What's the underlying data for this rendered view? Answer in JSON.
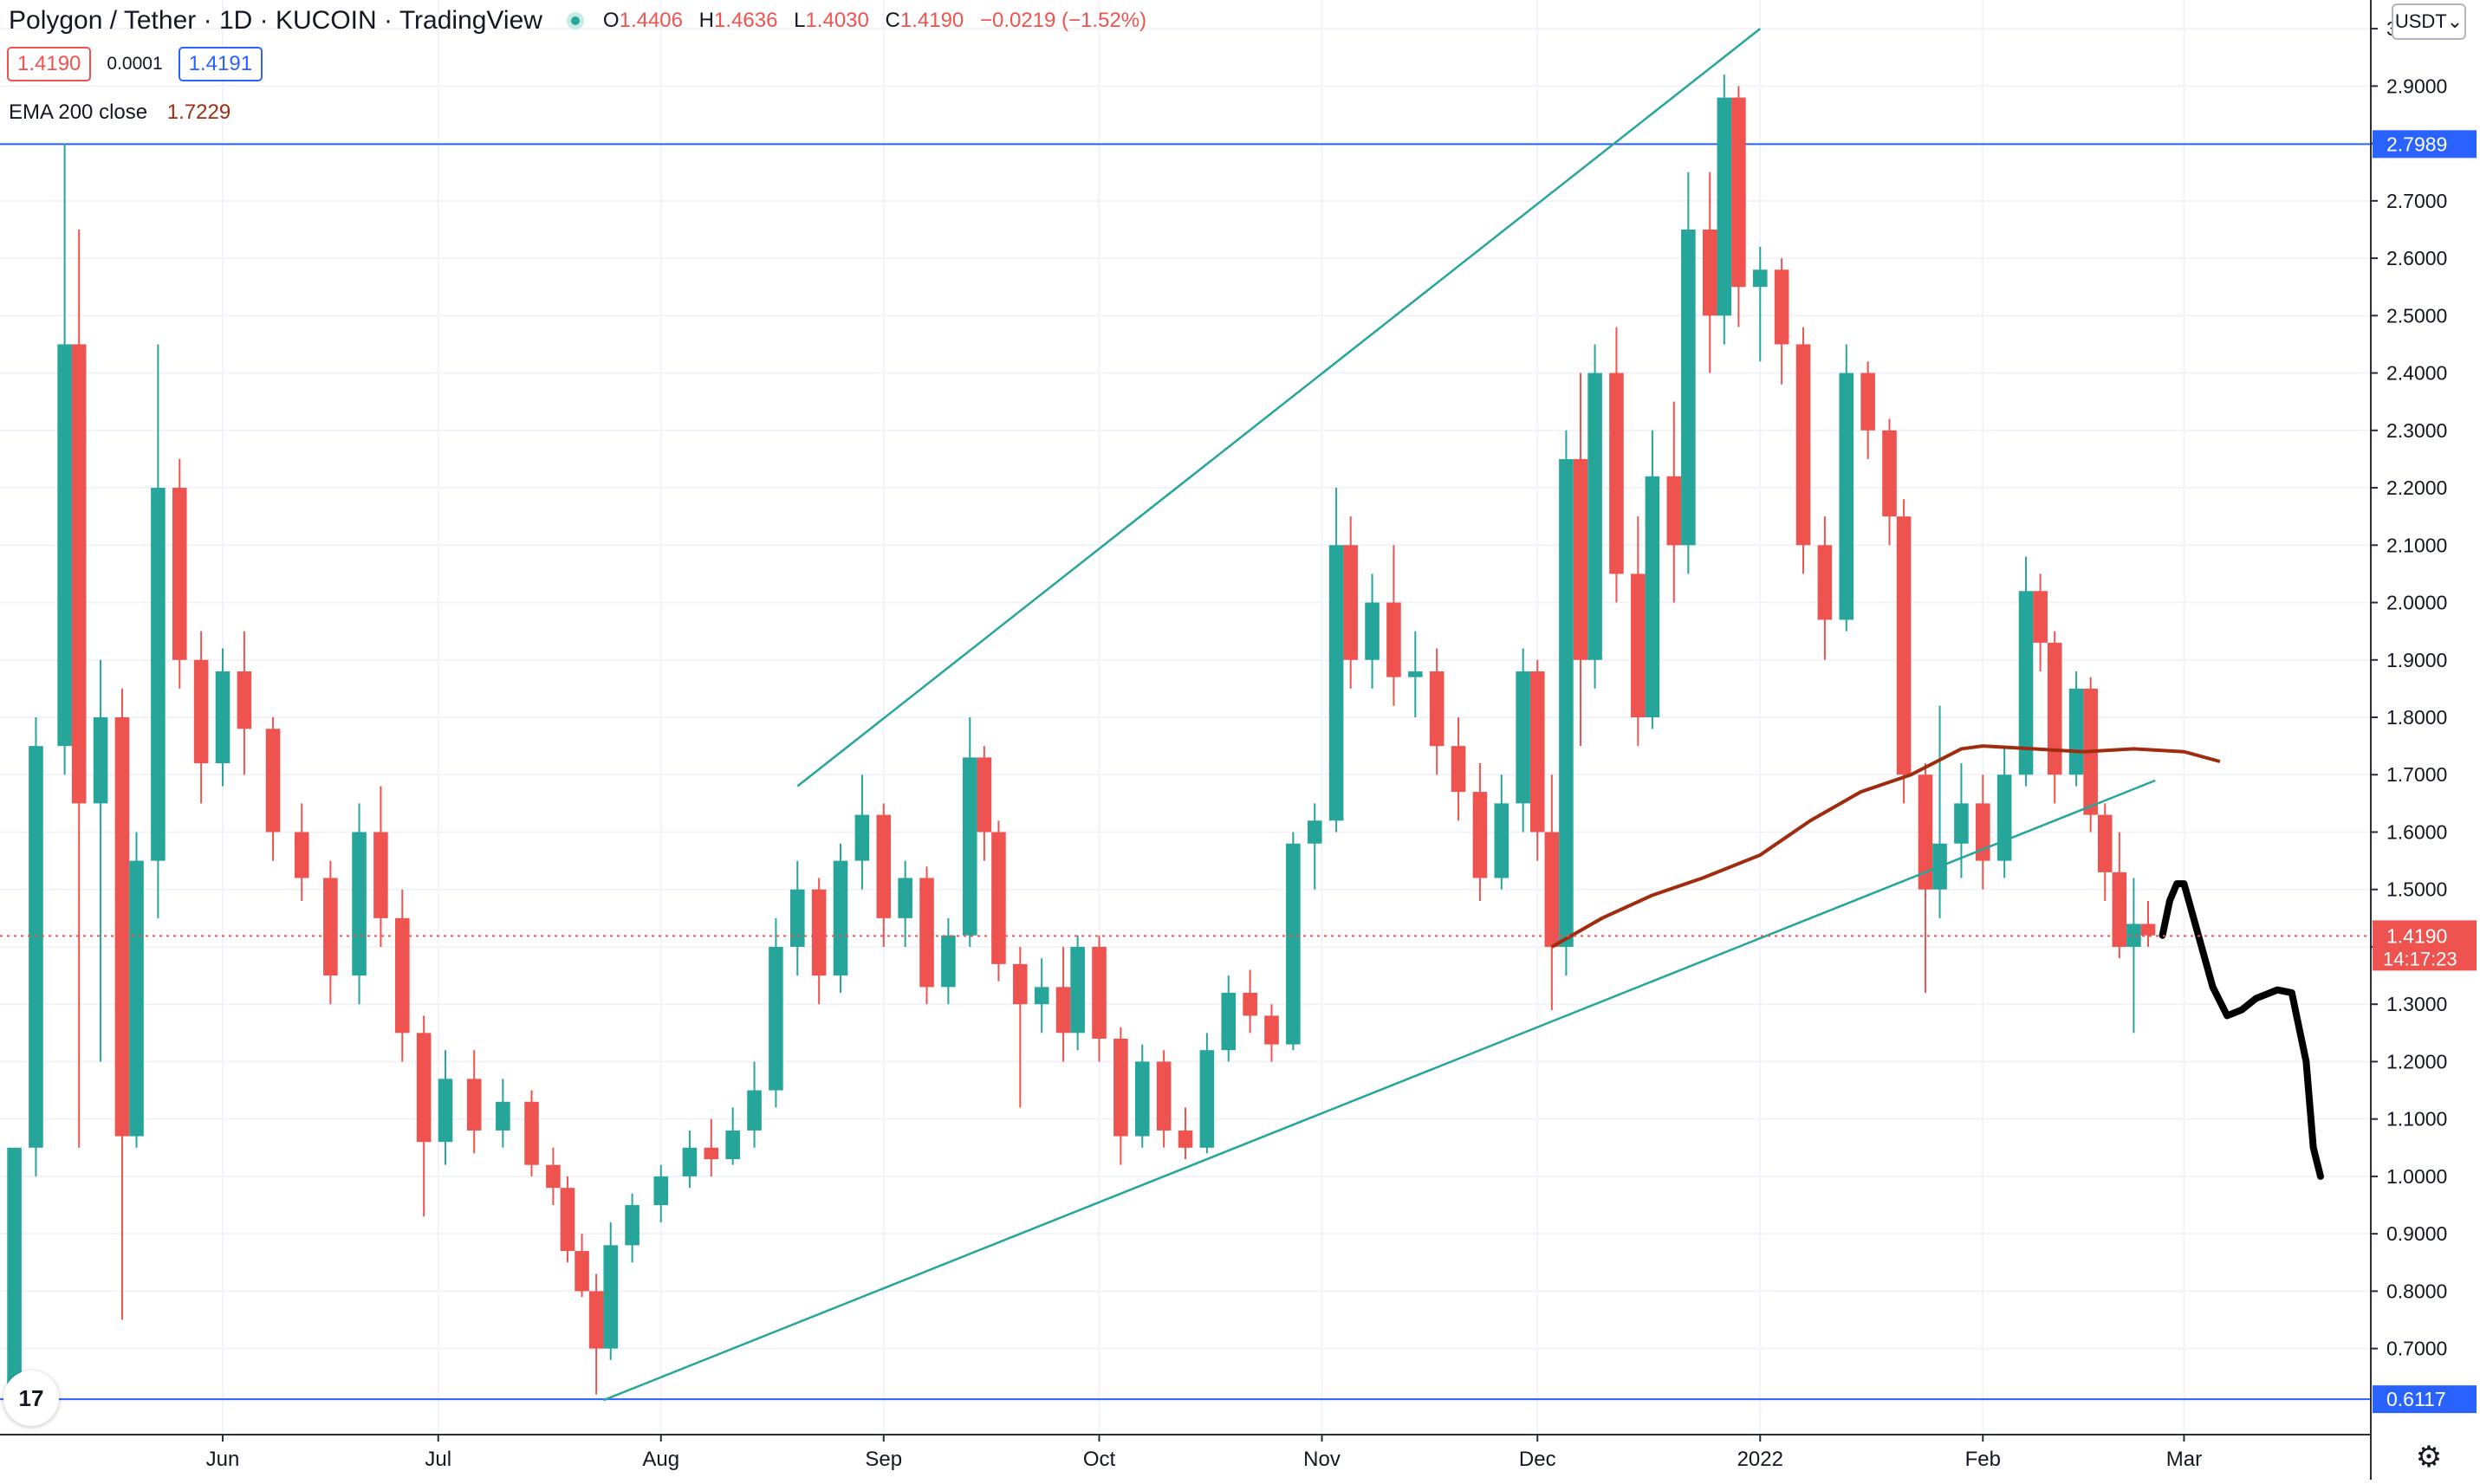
{
  "header": {
    "symbol": "Polygon / Tether",
    "interval": "1D",
    "exchange": "KUCOIN",
    "source": "TradingView",
    "separator": "·",
    "status_color": "#26a69a",
    "ohlc": {
      "o_key": "O",
      "o": "1.4406",
      "h_key": "H",
      "h": "1.4636",
      "l_key": "L",
      "l": "1.4030",
      "c_key": "C",
      "c": "1.4190",
      "change": "−0.0219 (−1.52%)"
    },
    "sell_price": "1.4190",
    "spread": "0.0001",
    "buy_price": "1.4191"
  },
  "indicator": {
    "label": "EMA 200 close",
    "value": "1.7229",
    "color": "#a02c10"
  },
  "price_axis": {
    "unit": "USDT",
    "ticks": [
      "0.7000",
      "0.8000",
      "0.9000",
      "1.0000",
      "1.1000",
      "1.2000",
      "1.3000",
      "1.4000",
      "1.5000",
      "1.6000",
      "1.7000",
      "1.8000",
      "1.9000",
      "2.0000",
      "2.1000",
      "2.2000",
      "2.3000",
      "2.4000",
      "2.5000",
      "2.6000",
      "2.7000",
      "2.8000",
      "2.9000",
      "3.0000"
    ],
    "levels": [
      {
        "label": "2.7989",
        "value": 2.7989,
        "color": "#2962ff"
      },
      {
        "label": "0.6117",
        "value": 0.6117,
        "color": "#2962ff"
      }
    ],
    "current": {
      "label": "1.4190",
      "value": 1.419,
      "countdown": "14:17:23",
      "color": "#ef5350"
    }
  },
  "time_axis": {
    "labels": [
      {
        "text": "Jun",
        "date": "2021-06-01"
      },
      {
        "text": "Jul",
        "date": "2021-07-01"
      },
      {
        "text": "Aug",
        "date": "2021-08-01"
      },
      {
        "text": "Sep",
        "date": "2021-09-01"
      },
      {
        "text": "Oct",
        "date": "2021-10-01"
      },
      {
        "text": "Nov",
        "date": "2021-11-01"
      },
      {
        "text": "Dec",
        "date": "2021-12-01"
      },
      {
        "text": "2022",
        "date": "2022-01-01"
      },
      {
        "text": "Feb",
        "date": "2022-02-01"
      },
      {
        "text": "Mar",
        "date": "2022-03-01"
      }
    ]
  },
  "icons": {
    "logo": "tradingview-logo-icon",
    "settings": "gear-icon"
  },
  "colors": {
    "up": "#26a69a",
    "down": "#ef5350",
    "grid": "#f0f3fa",
    "trendline": "#26a69a",
    "level": "#2962ff",
    "forecast": "#000000"
  },
  "chart_data": {
    "type": "candlestick",
    "x_type": "date",
    "ylim": [
      0.55,
      3.05
    ],
    "xlim": [
      "2021-05-01",
      "2022-03-27"
    ],
    "candles": [
      {
        "d": "2021-05-03",
        "o": 0.62,
        "h": 1.05,
        "l": 0.61,
        "c": 1.05
      },
      {
        "d": "2021-05-06",
        "o": 1.05,
        "h": 1.8,
        "l": 1.0,
        "c": 1.75
      },
      {
        "d": "2021-05-10",
        "o": 1.75,
        "h": 2.8,
        "l": 1.7,
        "c": 2.45
      },
      {
        "d": "2021-05-12",
        "o": 2.45,
        "h": 2.65,
        "l": 1.05,
        "c": 1.65
      },
      {
        "d": "2021-05-15",
        "o": 1.65,
        "h": 1.9,
        "l": 1.2,
        "c": 1.8
      },
      {
        "d": "2021-05-18",
        "o": 1.8,
        "h": 1.85,
        "l": 0.75,
        "c": 1.07
      },
      {
        "d": "2021-05-20",
        "o": 1.07,
        "h": 1.6,
        "l": 1.05,
        "c": 1.55
      },
      {
        "d": "2021-05-23",
        "o": 1.55,
        "h": 2.45,
        "l": 1.45,
        "c": 2.2
      },
      {
        "d": "2021-05-26",
        "o": 2.2,
        "h": 2.25,
        "l": 1.85,
        "c": 1.9
      },
      {
        "d": "2021-05-29",
        "o": 1.9,
        "h": 1.95,
        "l": 1.65,
        "c": 1.72
      },
      {
        "d": "2021-06-01",
        "o": 1.72,
        "h": 1.92,
        "l": 1.68,
        "c": 1.88
      },
      {
        "d": "2021-06-04",
        "o": 1.88,
        "h": 1.95,
        "l": 1.7,
        "c": 1.78
      },
      {
        "d": "2021-06-08",
        "o": 1.78,
        "h": 1.8,
        "l": 1.55,
        "c": 1.6
      },
      {
        "d": "2021-06-12",
        "o": 1.6,
        "h": 1.65,
        "l": 1.48,
        "c": 1.52
      },
      {
        "d": "2021-06-16",
        "o": 1.52,
        "h": 1.55,
        "l": 1.3,
        "c": 1.35
      },
      {
        "d": "2021-06-20",
        "o": 1.35,
        "h": 1.65,
        "l": 1.3,
        "c": 1.6
      },
      {
        "d": "2021-06-23",
        "o": 1.6,
        "h": 1.68,
        "l": 1.4,
        "c": 1.45
      },
      {
        "d": "2021-06-26",
        "o": 1.45,
        "h": 1.5,
        "l": 1.2,
        "c": 1.25
      },
      {
        "d": "2021-06-29",
        "o": 1.25,
        "h": 1.28,
        "l": 0.93,
        "c": 1.06
      },
      {
        "d": "2021-07-02",
        "o": 1.06,
        "h": 1.22,
        "l": 1.02,
        "c": 1.17
      },
      {
        "d": "2021-07-06",
        "o": 1.17,
        "h": 1.22,
        "l": 1.04,
        "c": 1.08
      },
      {
        "d": "2021-07-10",
        "o": 1.08,
        "h": 1.17,
        "l": 1.05,
        "c": 1.13
      },
      {
        "d": "2021-07-14",
        "o": 1.13,
        "h": 1.15,
        "l": 1.0,
        "c": 1.02
      },
      {
        "d": "2021-07-17",
        "o": 1.02,
        "h": 1.05,
        "l": 0.95,
        "c": 0.98
      },
      {
        "d": "2021-07-19",
        "o": 0.98,
        "h": 1.0,
        "l": 0.85,
        "c": 0.87
      },
      {
        "d": "2021-07-21",
        "o": 0.87,
        "h": 0.9,
        "l": 0.79,
        "c": 0.8
      },
      {
        "d": "2021-07-23",
        "o": 0.8,
        "h": 0.83,
        "l": 0.62,
        "c": 0.7
      },
      {
        "d": "2021-07-25",
        "o": 0.7,
        "h": 0.92,
        "l": 0.68,
        "c": 0.88
      },
      {
        "d": "2021-07-28",
        "o": 0.88,
        "h": 0.97,
        "l": 0.85,
        "c": 0.95
      },
      {
        "d": "2021-08-01",
        "o": 0.95,
        "h": 1.02,
        "l": 0.92,
        "c": 1.0
      },
      {
        "d": "2021-08-05",
        "o": 1.0,
        "h": 1.08,
        "l": 0.98,
        "c": 1.05
      },
      {
        "d": "2021-08-08",
        "o": 1.05,
        "h": 1.1,
        "l": 1.0,
        "c": 1.03
      },
      {
        "d": "2021-08-11",
        "o": 1.03,
        "h": 1.12,
        "l": 1.02,
        "c": 1.08
      },
      {
        "d": "2021-08-14",
        "o": 1.08,
        "h": 1.2,
        "l": 1.05,
        "c": 1.15
      },
      {
        "d": "2021-08-17",
        "o": 1.15,
        "h": 1.45,
        "l": 1.12,
        "c": 1.4
      },
      {
        "d": "2021-08-20",
        "o": 1.4,
        "h": 1.55,
        "l": 1.35,
        "c": 1.5
      },
      {
        "d": "2021-08-23",
        "o": 1.5,
        "h": 1.52,
        "l": 1.3,
        "c": 1.35
      },
      {
        "d": "2021-08-26",
        "o": 1.35,
        "h": 1.58,
        "l": 1.32,
        "c": 1.55
      },
      {
        "d": "2021-08-29",
        "o": 1.55,
        "h": 1.7,
        "l": 1.5,
        "c": 1.63
      },
      {
        "d": "2021-09-01",
        "o": 1.63,
        "h": 1.65,
        "l": 1.4,
        "c": 1.45
      },
      {
        "d": "2021-09-04",
        "o": 1.45,
        "h": 1.55,
        "l": 1.4,
        "c": 1.52
      },
      {
        "d": "2021-09-07",
        "o": 1.52,
        "h": 1.54,
        "l": 1.3,
        "c": 1.33
      },
      {
        "d": "2021-09-10",
        "o": 1.33,
        "h": 1.45,
        "l": 1.3,
        "c": 1.42
      },
      {
        "d": "2021-09-13",
        "o": 1.42,
        "h": 1.8,
        "l": 1.4,
        "c": 1.73
      },
      {
        "d": "2021-09-15",
        "o": 1.73,
        "h": 1.75,
        "l": 1.55,
        "c": 1.6
      },
      {
        "d": "2021-09-17",
        "o": 1.6,
        "h": 1.62,
        "l": 1.34,
        "c": 1.37
      },
      {
        "d": "2021-09-20",
        "o": 1.37,
        "h": 1.4,
        "l": 1.12,
        "c": 1.3
      },
      {
        "d": "2021-09-23",
        "o": 1.3,
        "h": 1.38,
        "l": 1.25,
        "c": 1.33
      },
      {
        "d": "2021-09-26",
        "o": 1.33,
        "h": 1.4,
        "l": 1.2,
        "c": 1.25
      },
      {
        "d": "2021-09-28",
        "o": 1.25,
        "h": 1.42,
        "l": 1.22,
        "c": 1.4
      },
      {
        "d": "2021-10-01",
        "o": 1.4,
        "h": 1.42,
        "l": 1.2,
        "c": 1.24
      },
      {
        "d": "2021-10-04",
        "o": 1.24,
        "h": 1.26,
        "l": 1.02,
        "c": 1.07
      },
      {
        "d": "2021-10-07",
        "o": 1.07,
        "h": 1.23,
        "l": 1.05,
        "c": 1.2
      },
      {
        "d": "2021-10-10",
        "o": 1.2,
        "h": 1.22,
        "l": 1.05,
        "c": 1.08
      },
      {
        "d": "2021-10-13",
        "o": 1.08,
        "h": 1.12,
        "l": 1.03,
        "c": 1.05
      },
      {
        "d": "2021-10-16",
        "o": 1.05,
        "h": 1.25,
        "l": 1.04,
        "c": 1.22
      },
      {
        "d": "2021-10-19",
        "o": 1.22,
        "h": 1.35,
        "l": 1.2,
        "c": 1.32
      },
      {
        "d": "2021-10-22",
        "o": 1.32,
        "h": 1.36,
        "l": 1.25,
        "c": 1.28
      },
      {
        "d": "2021-10-25",
        "o": 1.28,
        "h": 1.3,
        "l": 1.2,
        "c": 1.23
      },
      {
        "d": "2021-10-28",
        "o": 1.23,
        "h": 1.6,
        "l": 1.22,
        "c": 1.58
      },
      {
        "d": "2021-10-31",
        "o": 1.58,
        "h": 1.65,
        "l": 1.5,
        "c": 1.62
      },
      {
        "d": "2021-11-03",
        "o": 1.62,
        "h": 2.2,
        "l": 1.6,
        "c": 2.1
      },
      {
        "d": "2021-11-05",
        "o": 2.1,
        "h": 2.15,
        "l": 1.85,
        "c": 1.9
      },
      {
        "d": "2021-11-08",
        "o": 1.9,
        "h": 2.05,
        "l": 1.85,
        "c": 2.0
      },
      {
        "d": "2021-11-11",
        "o": 2.0,
        "h": 2.1,
        "l": 1.82,
        "c": 1.87
      },
      {
        "d": "2021-11-14",
        "o": 1.87,
        "h": 1.95,
        "l": 1.8,
        "c": 1.88
      },
      {
        "d": "2021-11-17",
        "o": 1.88,
        "h": 1.92,
        "l": 1.7,
        "c": 1.75
      },
      {
        "d": "2021-11-20",
        "o": 1.75,
        "h": 1.8,
        "l": 1.62,
        "c": 1.67
      },
      {
        "d": "2021-11-23",
        "o": 1.67,
        "h": 1.72,
        "l": 1.48,
        "c": 1.52
      },
      {
        "d": "2021-11-26",
        "o": 1.52,
        "h": 1.7,
        "l": 1.5,
        "c": 1.65
      },
      {
        "d": "2021-11-29",
        "o": 1.65,
        "h": 1.92,
        "l": 1.6,
        "c": 1.88
      },
      {
        "d": "2021-12-01",
        "o": 1.88,
        "h": 1.9,
        "l": 1.55,
        "c": 1.6
      },
      {
        "d": "2021-12-03",
        "o": 1.6,
        "h": 1.7,
        "l": 1.29,
        "c": 1.4
      },
      {
        "d": "2021-12-05",
        "o": 1.4,
        "h": 2.3,
        "l": 1.35,
        "c": 2.25
      },
      {
        "d": "2021-12-07",
        "o": 2.25,
        "h": 2.4,
        "l": 1.75,
        "c": 1.9
      },
      {
        "d": "2021-12-09",
        "o": 1.9,
        "h": 2.45,
        "l": 1.85,
        "c": 2.4
      },
      {
        "d": "2021-12-12",
        "o": 2.4,
        "h": 2.48,
        "l": 2.0,
        "c": 2.05
      },
      {
        "d": "2021-12-15",
        "o": 2.05,
        "h": 2.15,
        "l": 1.75,
        "c": 1.8
      },
      {
        "d": "2021-12-17",
        "o": 1.8,
        "h": 2.3,
        "l": 1.78,
        "c": 2.22
      },
      {
        "d": "2021-12-20",
        "o": 2.22,
        "h": 2.35,
        "l": 2.0,
        "c": 2.1
      },
      {
        "d": "2021-12-22",
        "o": 2.1,
        "h": 2.75,
        "l": 2.05,
        "c": 2.65
      },
      {
        "d": "2021-12-25",
        "o": 2.65,
        "h": 2.75,
        "l": 2.4,
        "c": 2.5
      },
      {
        "d": "2021-12-27",
        "o": 2.5,
        "h": 2.92,
        "l": 2.45,
        "c": 2.88
      },
      {
        "d": "2021-12-29",
        "o": 2.88,
        "h": 2.9,
        "l": 2.48,
        "c": 2.55
      },
      {
        "d": "2022-01-01",
        "o": 2.55,
        "h": 2.62,
        "l": 2.42,
        "c": 2.58
      },
      {
        "d": "2022-01-04",
        "o": 2.58,
        "h": 2.6,
        "l": 2.38,
        "c": 2.45
      },
      {
        "d": "2022-01-07",
        "o": 2.45,
        "h": 2.48,
        "l": 2.05,
        "c": 2.1
      },
      {
        "d": "2022-01-10",
        "o": 2.1,
        "h": 2.15,
        "l": 1.9,
        "c": 1.97
      },
      {
        "d": "2022-01-13",
        "o": 1.97,
        "h": 2.45,
        "l": 1.95,
        "c": 2.4
      },
      {
        "d": "2022-01-16",
        "o": 2.4,
        "h": 2.42,
        "l": 2.25,
        "c": 2.3
      },
      {
        "d": "2022-01-19",
        "o": 2.3,
        "h": 2.32,
        "l": 2.1,
        "c": 2.15
      },
      {
        "d": "2022-01-21",
        "o": 2.15,
        "h": 2.18,
        "l": 1.65,
        "c": 1.7
      },
      {
        "d": "2022-01-24",
        "o": 1.7,
        "h": 1.72,
        "l": 1.32,
        "c": 1.5
      },
      {
        "d": "2022-01-26",
        "o": 1.5,
        "h": 1.82,
        "l": 1.45,
        "c": 1.58
      },
      {
        "d": "2022-01-29",
        "o": 1.58,
        "h": 1.72,
        "l": 1.52,
        "c": 1.65
      },
      {
        "d": "2022-02-01",
        "o": 1.65,
        "h": 1.7,
        "l": 1.5,
        "c": 1.55
      },
      {
        "d": "2022-02-04",
        "o": 1.55,
        "h": 1.75,
        "l": 1.52,
        "c": 1.7
      },
      {
        "d": "2022-02-07",
        "o": 1.7,
        "h": 2.08,
        "l": 1.68,
        "c": 2.02
      },
      {
        "d": "2022-02-09",
        "o": 2.02,
        "h": 2.05,
        "l": 1.88,
        "c": 1.93
      },
      {
        "d": "2022-02-11",
        "o": 1.93,
        "h": 1.95,
        "l": 1.65,
        "c": 1.7
      },
      {
        "d": "2022-02-14",
        "o": 1.7,
        "h": 1.88,
        "l": 1.68,
        "c": 1.85
      },
      {
        "d": "2022-02-16",
        "o": 1.85,
        "h": 1.87,
        "l": 1.6,
        "c": 1.63
      },
      {
        "d": "2022-02-18",
        "o": 1.63,
        "h": 1.65,
        "l": 1.48,
        "c": 1.53
      },
      {
        "d": "2022-02-20",
        "o": 1.53,
        "h": 1.6,
        "l": 1.38,
        "c": 1.4
      },
      {
        "d": "2022-02-22",
        "o": 1.4,
        "h": 1.52,
        "l": 1.25,
        "c": 1.44
      },
      {
        "d": "2022-02-24",
        "o": 1.44,
        "h": 1.48,
        "l": 1.4,
        "c": 1.42
      }
    ],
    "ema200": [
      {
        "d": "2021-12-03",
        "v": 1.4
      },
      {
        "d": "2021-12-10",
        "v": 1.45
      },
      {
        "d": "2021-12-17",
        "v": 1.49
      },
      {
        "d": "2021-12-24",
        "v": 1.52
      },
      {
        "d": "2022-01-01",
        "v": 1.56
      },
      {
        "d": "2022-01-08",
        "v": 1.62
      },
      {
        "d": "2022-01-15",
        "v": 1.67
      },
      {
        "d": "2022-01-22",
        "v": 1.7
      },
      {
        "d": "2022-01-29",
        "v": 1.745
      },
      {
        "d": "2022-02-01",
        "v": 1.75
      },
      {
        "d": "2022-02-08",
        "v": 1.745
      },
      {
        "d": "2022-02-15",
        "v": 1.74
      },
      {
        "d": "2022-02-22",
        "v": 1.745
      },
      {
        "d": "2022-03-01",
        "v": 1.74
      },
      {
        "d": "2022-03-06",
        "v": 1.723
      }
    ],
    "trendlines": [
      {
        "d1": "2021-08-20",
        "v1": 1.68,
        "d2": "2022-01-01",
        "v2": 3.0
      },
      {
        "d1": "2021-07-24",
        "v1": 0.61,
        "d2": "2022-02-25",
        "v2": 1.69
      }
    ],
    "forecast_path": [
      {
        "d": "2022-02-26",
        "v": 1.42
      },
      {
        "d": "2022-02-27",
        "v": 1.48
      },
      {
        "d": "2022-02-28",
        "v": 1.51
      },
      {
        "d": "2022-03-01",
        "v": 1.51
      },
      {
        "d": "2022-03-03",
        "v": 1.42
      },
      {
        "d": "2022-03-05",
        "v": 1.33
      },
      {
        "d": "2022-03-07",
        "v": 1.28
      },
      {
        "d": "2022-03-09",
        "v": 1.29
      },
      {
        "d": "2022-03-11",
        "v": 1.31
      },
      {
        "d": "2022-03-14",
        "v": 1.325
      },
      {
        "d": "2022-03-16",
        "v": 1.32
      },
      {
        "d": "2022-03-18",
        "v": 1.2
      },
      {
        "d": "2022-03-19",
        "v": 1.05
      },
      {
        "d": "2022-03-20",
        "v": 1.0
      }
    ]
  }
}
